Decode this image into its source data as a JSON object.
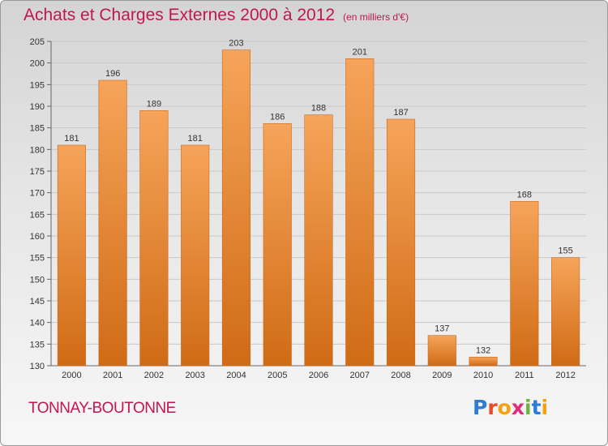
{
  "chart_data": {
    "type": "bar",
    "title": "Achats et Charges Externes 2000 à 2012",
    "subtitle": "(en milliers d'€)",
    "categories": [
      "2000",
      "2001",
      "2002",
      "2003",
      "2004",
      "2005",
      "2006",
      "2007",
      "2008",
      "2009",
      "2010",
      "2011",
      "2012"
    ],
    "values": [
      181,
      196,
      189,
      181,
      203,
      186,
      188,
      201,
      187,
      137,
      132,
      168,
      155
    ],
    "xlabel": "",
    "ylabel": "",
    "ylim": [
      130,
      205
    ],
    "yticks": [
      130,
      135,
      140,
      145,
      150,
      155,
      160,
      165,
      170,
      175,
      180,
      185,
      190,
      195,
      200,
      205
    ],
    "grid": true,
    "legend": "none",
    "bar_color_top": "#f6a45a",
    "bar_color_bottom": "#d06b15"
  },
  "commune": "TONNAY-BOUTONNE",
  "logo": [
    "P",
    "r",
    "o",
    "x",
    "i",
    "t",
    "i"
  ],
  "colors": {
    "title": "#c0184e",
    "grid": "#c8c8c8"
  }
}
